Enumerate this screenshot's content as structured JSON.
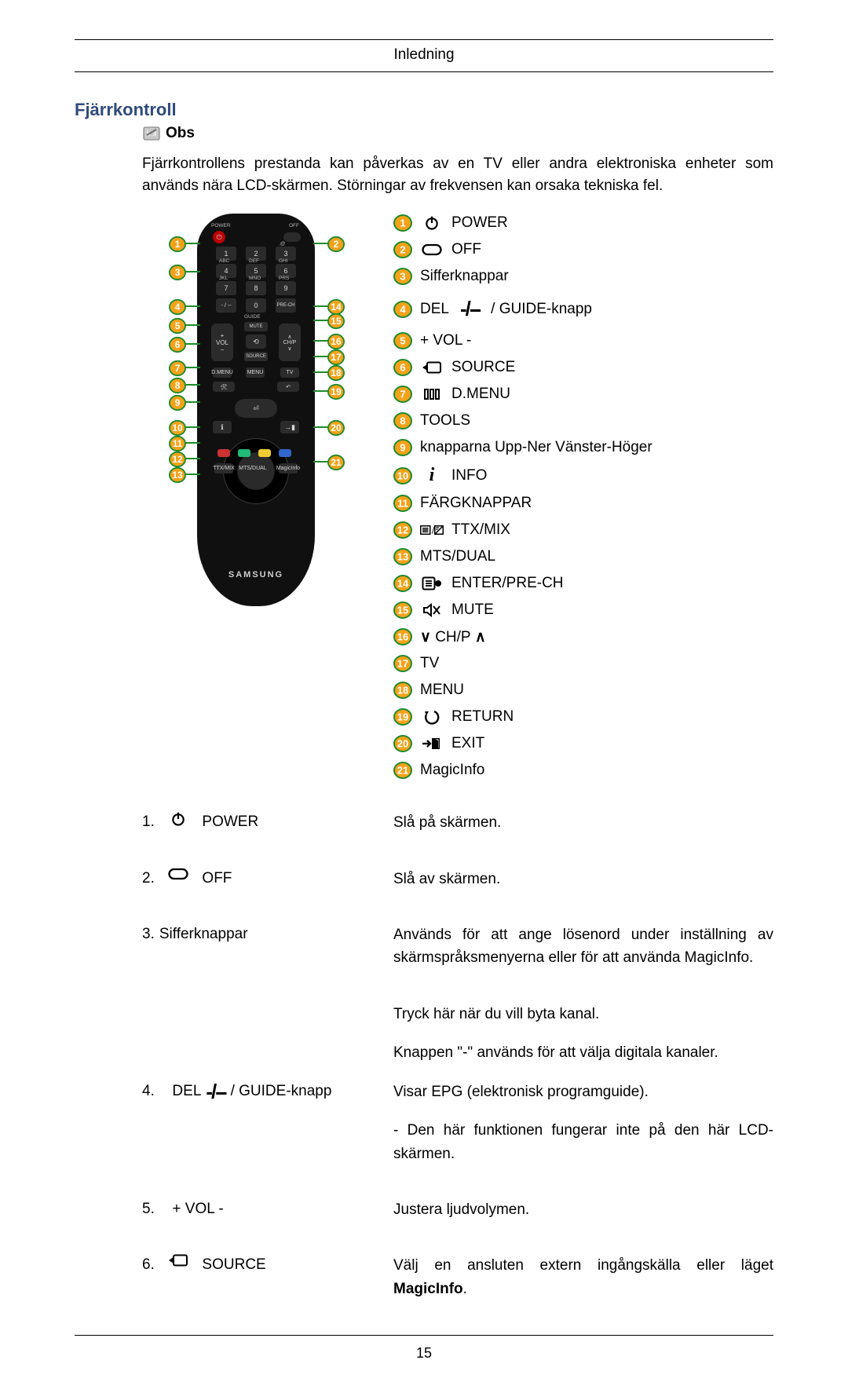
{
  "header": {
    "title": "Inledning"
  },
  "section": {
    "title": "Fjärrkontroll"
  },
  "note": {
    "label": "Obs"
  },
  "intro_text": "Fjärrkontrollens prestanda kan påverkas av en TV eller andra elektroniska enheter som används nära LCD-skärmen. Störningar av frekvensen kan orsaka tekniska fel.",
  "colors": {
    "badge_fill": "#f3a21a",
    "badge_stroke": "#1e8a2e",
    "badge_text": "#ffffff"
  },
  "remote": {
    "brand": "SAMSUNG",
    "left_badges": [
      1,
      3,
      4,
      5,
      6,
      7,
      8,
      9,
      10,
      11,
      12,
      13
    ],
    "right_badges": [
      2,
      14,
      15,
      16,
      17,
      18,
      19,
      20,
      21
    ],
    "left_positions": {
      "1": 28,
      "3": 64,
      "4": 108,
      "5": 132,
      "6": 156,
      "7": 186,
      "8": 208,
      "9": 230,
      "10": 262,
      "11": 282,
      "12": 302,
      "13": 322
    },
    "right_positions": {
      "2": 28,
      "14": 108,
      "15": 126,
      "16": 152,
      "17": 172,
      "18": 192,
      "19": 216,
      "20": 262,
      "21": 306
    }
  },
  "legend": [
    {
      "n": 1,
      "icon": "power",
      "label": "POWER"
    },
    {
      "n": 2,
      "icon": "off",
      "label": "OFF"
    },
    {
      "n": 3,
      "icon": "",
      "label": "Sifferknappar"
    },
    {
      "n": 4,
      "icon": "del",
      "prefix": "DEL",
      "label": "/ GUIDE-knapp"
    },
    {
      "n": 5,
      "icon": "",
      "label": "+ VOL -"
    },
    {
      "n": 6,
      "icon": "source",
      "label": "SOURCE"
    },
    {
      "n": 7,
      "icon": "dmenu",
      "label": "D.MENU"
    },
    {
      "n": 8,
      "icon": "",
      "label": "TOOLS"
    },
    {
      "n": 9,
      "icon": "",
      "label": "knapparna Upp-Ner Vänster-Höger"
    },
    {
      "n": 10,
      "icon": "info",
      "label": "INFO"
    },
    {
      "n": 11,
      "icon": "",
      "label": "FÄRGKNAPPAR"
    },
    {
      "n": 12,
      "icon": "ttx",
      "label": "TTX/MIX"
    },
    {
      "n": 13,
      "icon": "",
      "label": "MTS/DUAL"
    },
    {
      "n": 14,
      "icon": "enter",
      "label": "ENTER/PRE-CH"
    },
    {
      "n": 15,
      "icon": "mute",
      "label": "MUTE"
    },
    {
      "n": 16,
      "icon": "chp",
      "label": "CH/P"
    },
    {
      "n": 17,
      "icon": "",
      "label": "TV"
    },
    {
      "n": 18,
      "icon": "",
      "label": "MENU"
    },
    {
      "n": 19,
      "icon": "return",
      "label": "RETURN"
    },
    {
      "n": 20,
      "icon": "exit",
      "label": "EXIT"
    },
    {
      "n": 21,
      "icon": "",
      "label": "MagicInfo"
    }
  ],
  "table": [
    {
      "n": "1.",
      "icon": "power",
      "label": "POWER",
      "desc": [
        "Slå på skärmen."
      ]
    },
    {
      "n": "2.",
      "icon": "off",
      "label": "OFF",
      "desc": [
        "Slå av skärmen."
      ]
    },
    {
      "n": "3.",
      "icon": "",
      "label": "Sifferknappar",
      "nosep": true,
      "desc": [
        "Används för att ange lösenord under inställning av skärmspråksmenyerna eller för att använda MagicInfo."
      ]
    },
    {
      "n": "4.",
      "icon": "del",
      "prefix": "DEL",
      "label": "/ GUIDE-knapp",
      "justify": true,
      "desc": [
        "Tryck här när du vill byta kanal.",
        "Knappen \"-\" används för att välja digitala kanaler.",
        "Visar EPG (elektronisk programguide).",
        "- Den här funktionen fungerar inte på den här LCD-skärmen."
      ]
    },
    {
      "n": "5.",
      "icon": "",
      "label": "+ VOL -",
      "desc": [
        "Justera ljudvolymen."
      ]
    },
    {
      "n": "6.",
      "icon": "source",
      "label": "SOURCE",
      "desc_html": "Välj en ansluten extern ingångskälla eller läget <b>MagicInfo</b>."
    }
  ],
  "page_number": "15"
}
